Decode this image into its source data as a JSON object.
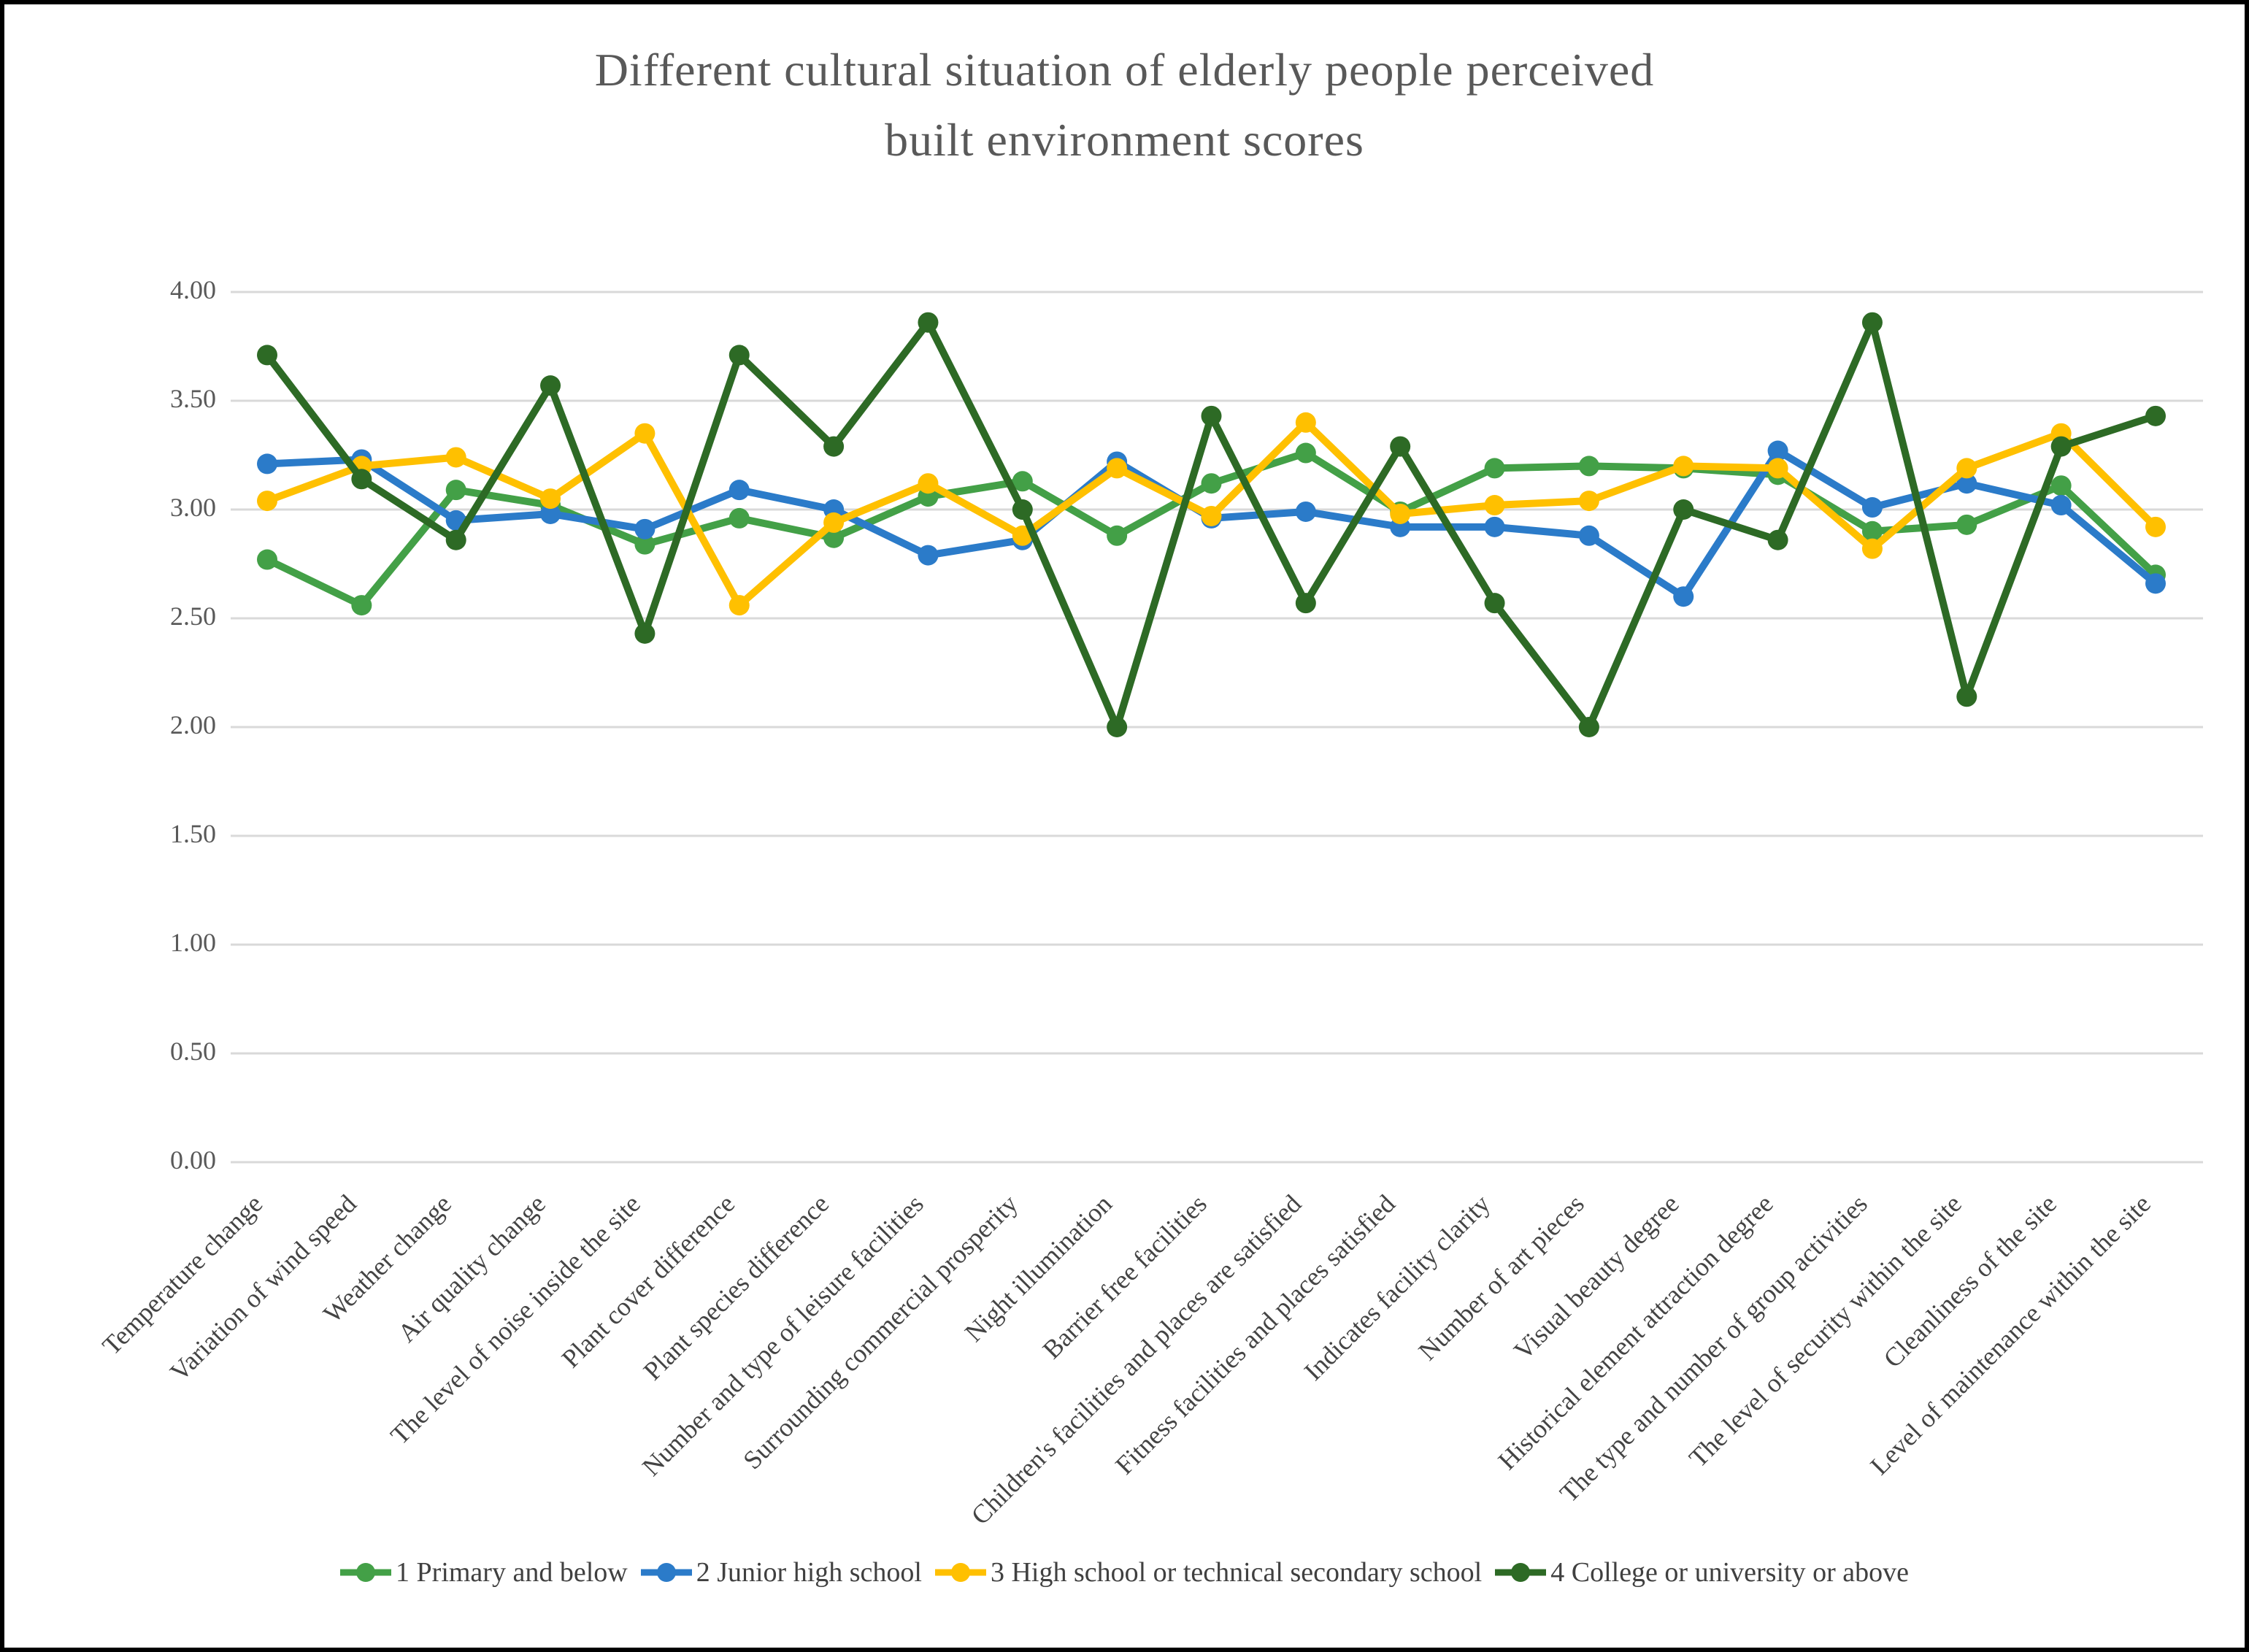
{
  "page": {
    "title_line1": "Different cultural situation of elderly people perceived",
    "title_line2": "built environment scores"
  },
  "chart_data": {
    "type": "line",
    "title": "Different cultural situation of elderly people perceived built environment scores",
    "xlabel": "",
    "ylabel": "",
    "ylim": [
      0,
      4
    ],
    "ytick_step": 0.5,
    "ytick_labels": [
      "0.00",
      "0.50",
      "1.00",
      "1.50",
      "2.00",
      "2.50",
      "3.00",
      "3.50",
      "4.00"
    ],
    "grid": true,
    "legend_position": "bottom",
    "categories": [
      "Temperature change",
      "Variation of wind speed",
      "Weather change",
      "Air quality change",
      "The level of noise inside the site",
      "Plant cover difference",
      "Plant species difference",
      "Number and type of leisure facilities",
      "Surrounding commercial prosperity",
      "Night illumination",
      "Barrier free facilities",
      "Children's facilities and places are satisfied",
      "Fitness facilities and places satisfied",
      "Indicates facility clarity",
      "Number of art pieces",
      "Visual beauty degree",
      "Historical element attraction degree",
      "The type and number of group activities",
      "The level of security within the site",
      "Cleanliness of the site",
      "Level of maintenance within the site"
    ],
    "series": [
      {
        "name": "1 Primary and below",
        "color": "#43A047",
        "values": [
          2.77,
          2.56,
          3.09,
          3.02,
          2.84,
          2.96,
          2.87,
          3.06,
          3.13,
          2.88,
          3.12,
          3.26,
          2.99,
          3.19,
          3.2,
          3.19,
          3.16,
          2.9,
          2.93,
          3.11,
          2.7
        ]
      },
      {
        "name": "2 Junior high school",
        "color": "#2B7BC9",
        "values": [
          3.21,
          3.23,
          2.95,
          2.98,
          2.91,
          3.09,
          3.0,
          2.79,
          2.86,
          3.22,
          2.96,
          2.99,
          2.92,
          2.92,
          2.88,
          2.6,
          3.27,
          3.01,
          3.12,
          3.02,
          2.66
        ]
      },
      {
        "name": "3 High school or technical secondary school",
        "color": "#FFC000",
        "values": [
          3.04,
          3.2,
          3.24,
          3.05,
          3.35,
          2.56,
          2.94,
          3.12,
          2.88,
          3.19,
          2.97,
          3.4,
          2.98,
          3.02,
          3.04,
          3.2,
          3.19,
          2.82,
          3.19,
          3.35,
          2.92
        ]
      },
      {
        "name": "4 College or university or above",
        "color": "#2D6A25",
        "values": [
          3.71,
          3.14,
          2.86,
          3.57,
          2.43,
          3.71,
          3.29,
          3.86,
          3.0,
          2.0,
          3.43,
          2.57,
          3.29,
          2.57,
          2.0,
          3.0,
          2.86,
          3.86,
          2.14,
          3.29,
          3.43
        ]
      }
    ]
  },
  "colors": {
    "grid": "#D9D9D9",
    "title_text": "#595959",
    "ytick_text": "#595959",
    "xlabel_text": "#444444",
    "frame_border": "#000000",
    "background": "#FFFFFF"
  }
}
